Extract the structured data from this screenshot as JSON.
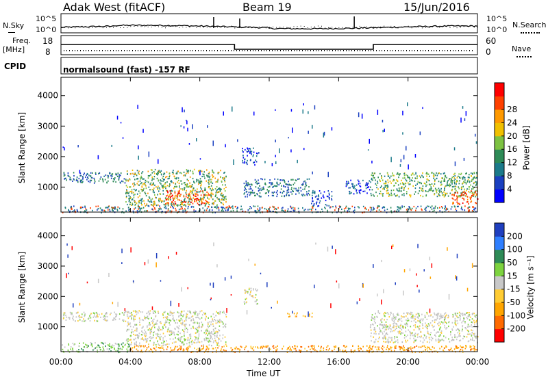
{
  "header": {
    "station": "Adak West (fitACF)",
    "beam": "Beam 19",
    "date": "15/Jun/2016"
  },
  "status_panels": {
    "nsky": {
      "label": "N.Sky",
      "ticks": [
        "10^5",
        "10^0"
      ]
    },
    "nsearch": {
      "label": "N.Search",
      "ticks": [
        "10^5",
        "10^0"
      ]
    },
    "freq": {
      "label_line1": "Freq.",
      "label_line2": "[MHz]",
      "ticks": [
        "18",
        "8"
      ]
    },
    "nave": {
      "label": "Nave",
      "ticks": [
        "60",
        "0"
      ]
    },
    "cpid": {
      "label": "CPID",
      "program": "normalsound (fast) -157 RF"
    }
  },
  "chart_data": [
    {
      "type": "heatmap",
      "name": "power",
      "ylabel": "Slant Range [km]",
      "xlabel": "",
      "x_ticks": [
        "00:00",
        "04:00",
        "08:00",
        "12:00",
        "16:00",
        "20:00",
        "00:00"
      ],
      "x_range_hours": [
        0,
        24
      ],
      "y_ticks": [
        1000,
        2000,
        3000,
        4000
      ],
      "ylim": [
        180,
        4600
      ],
      "colorbar": {
        "label": "Power [dB]",
        "ticks": [
          "4",
          "8",
          "12",
          "16",
          "20",
          "24",
          "28"
        ],
        "colors": [
          "#0000ff",
          "#1a40c0",
          "#1b7a8a",
          "#2e8b57",
          "#7dc242",
          "#f0c000",
          "#ff9900",
          "#ff4000",
          "#ff0000"
        ]
      },
      "regions": [
        {
          "start_h": 0.1,
          "end_h": 3.7,
          "r_low": 1150,
          "r_high": 1500,
          "level": "blue-green"
        },
        {
          "start_h": 3.7,
          "end_h": 9.5,
          "r_low": 400,
          "r_high": 1600,
          "level": "green-orange-red"
        },
        {
          "start_h": 6.0,
          "end_h": 8.6,
          "r_low": 450,
          "r_high": 900,
          "level": "red"
        },
        {
          "start_h": 10.4,
          "end_h": 11.3,
          "r_low": 1750,
          "r_high": 2300,
          "level": "blue"
        },
        {
          "start_h": 10.5,
          "end_h": 14.3,
          "r_low": 700,
          "r_high": 1300,
          "level": "blue-green"
        },
        {
          "start_h": 14.4,
          "end_h": 15.6,
          "r_low": 400,
          "r_high": 900,
          "level": "blue"
        },
        {
          "start_h": 16.4,
          "end_h": 17.8,
          "r_low": 800,
          "r_high": 1250,
          "level": "blue"
        },
        {
          "start_h": 17.8,
          "end_h": 24.0,
          "r_low": 700,
          "r_high": 1500,
          "level": "green-yellow"
        },
        {
          "start_h": 22.5,
          "end_h": 24.0,
          "r_low": 450,
          "r_high": 900,
          "level": "red"
        },
        {
          "start_h": 0.0,
          "end_h": 24.0,
          "r_low": 180,
          "r_high": 400,
          "level": "ground-scatter"
        }
      ]
    },
    {
      "type": "heatmap",
      "name": "velocity",
      "ylabel": "Slant Range [km]",
      "xlabel": "Time UT",
      "x_ticks": [
        "00:00",
        "04:00",
        "08:00",
        "12:00",
        "16:00",
        "20:00",
        "00:00"
      ],
      "x_range_hours": [
        0,
        24
      ],
      "y_ticks": [
        1000,
        2000,
        3000,
        4000
      ],
      "ylim": [
        180,
        4600
      ],
      "colorbar": {
        "label": "Velocity [m s⁻¹]",
        "ticks": [
          "200",
          "100",
          "50",
          "15",
          "-15",
          "-50",
          "-100",
          "-200"
        ],
        "colors": [
          "#1f3fbf",
          "#2f7fff",
          "#2e8b57",
          "#7dd33f",
          "#c8c8c8",
          "#ffcc33",
          "#ffa500",
          "#ff6a00",
          "#ff0000"
        ]
      },
      "regions": [
        {
          "start_h": 0.1,
          "end_h": 3.7,
          "r_low": 1200,
          "r_high": 1500,
          "level": "grey"
        },
        {
          "start_h": 3.7,
          "end_h": 9.5,
          "r_low": 400,
          "r_high": 1550,
          "level": "grey"
        },
        {
          "start_h": 10.5,
          "end_h": 11.3,
          "r_low": 1750,
          "r_high": 2300,
          "level": "grey"
        },
        {
          "start_h": 13.0,
          "end_h": 14.5,
          "r_low": 1350,
          "r_high": 1480,
          "level": "orange"
        },
        {
          "start_h": 17.8,
          "end_h": 24.0,
          "r_low": 500,
          "r_high": 1500,
          "level": "grey"
        },
        {
          "start_h": 0.0,
          "end_h": 4.0,
          "r_low": 180,
          "r_high": 500,
          "level": "green"
        },
        {
          "start_h": 4.0,
          "end_h": 24.0,
          "r_low": 180,
          "r_high": 400,
          "level": "orange"
        }
      ]
    }
  ]
}
